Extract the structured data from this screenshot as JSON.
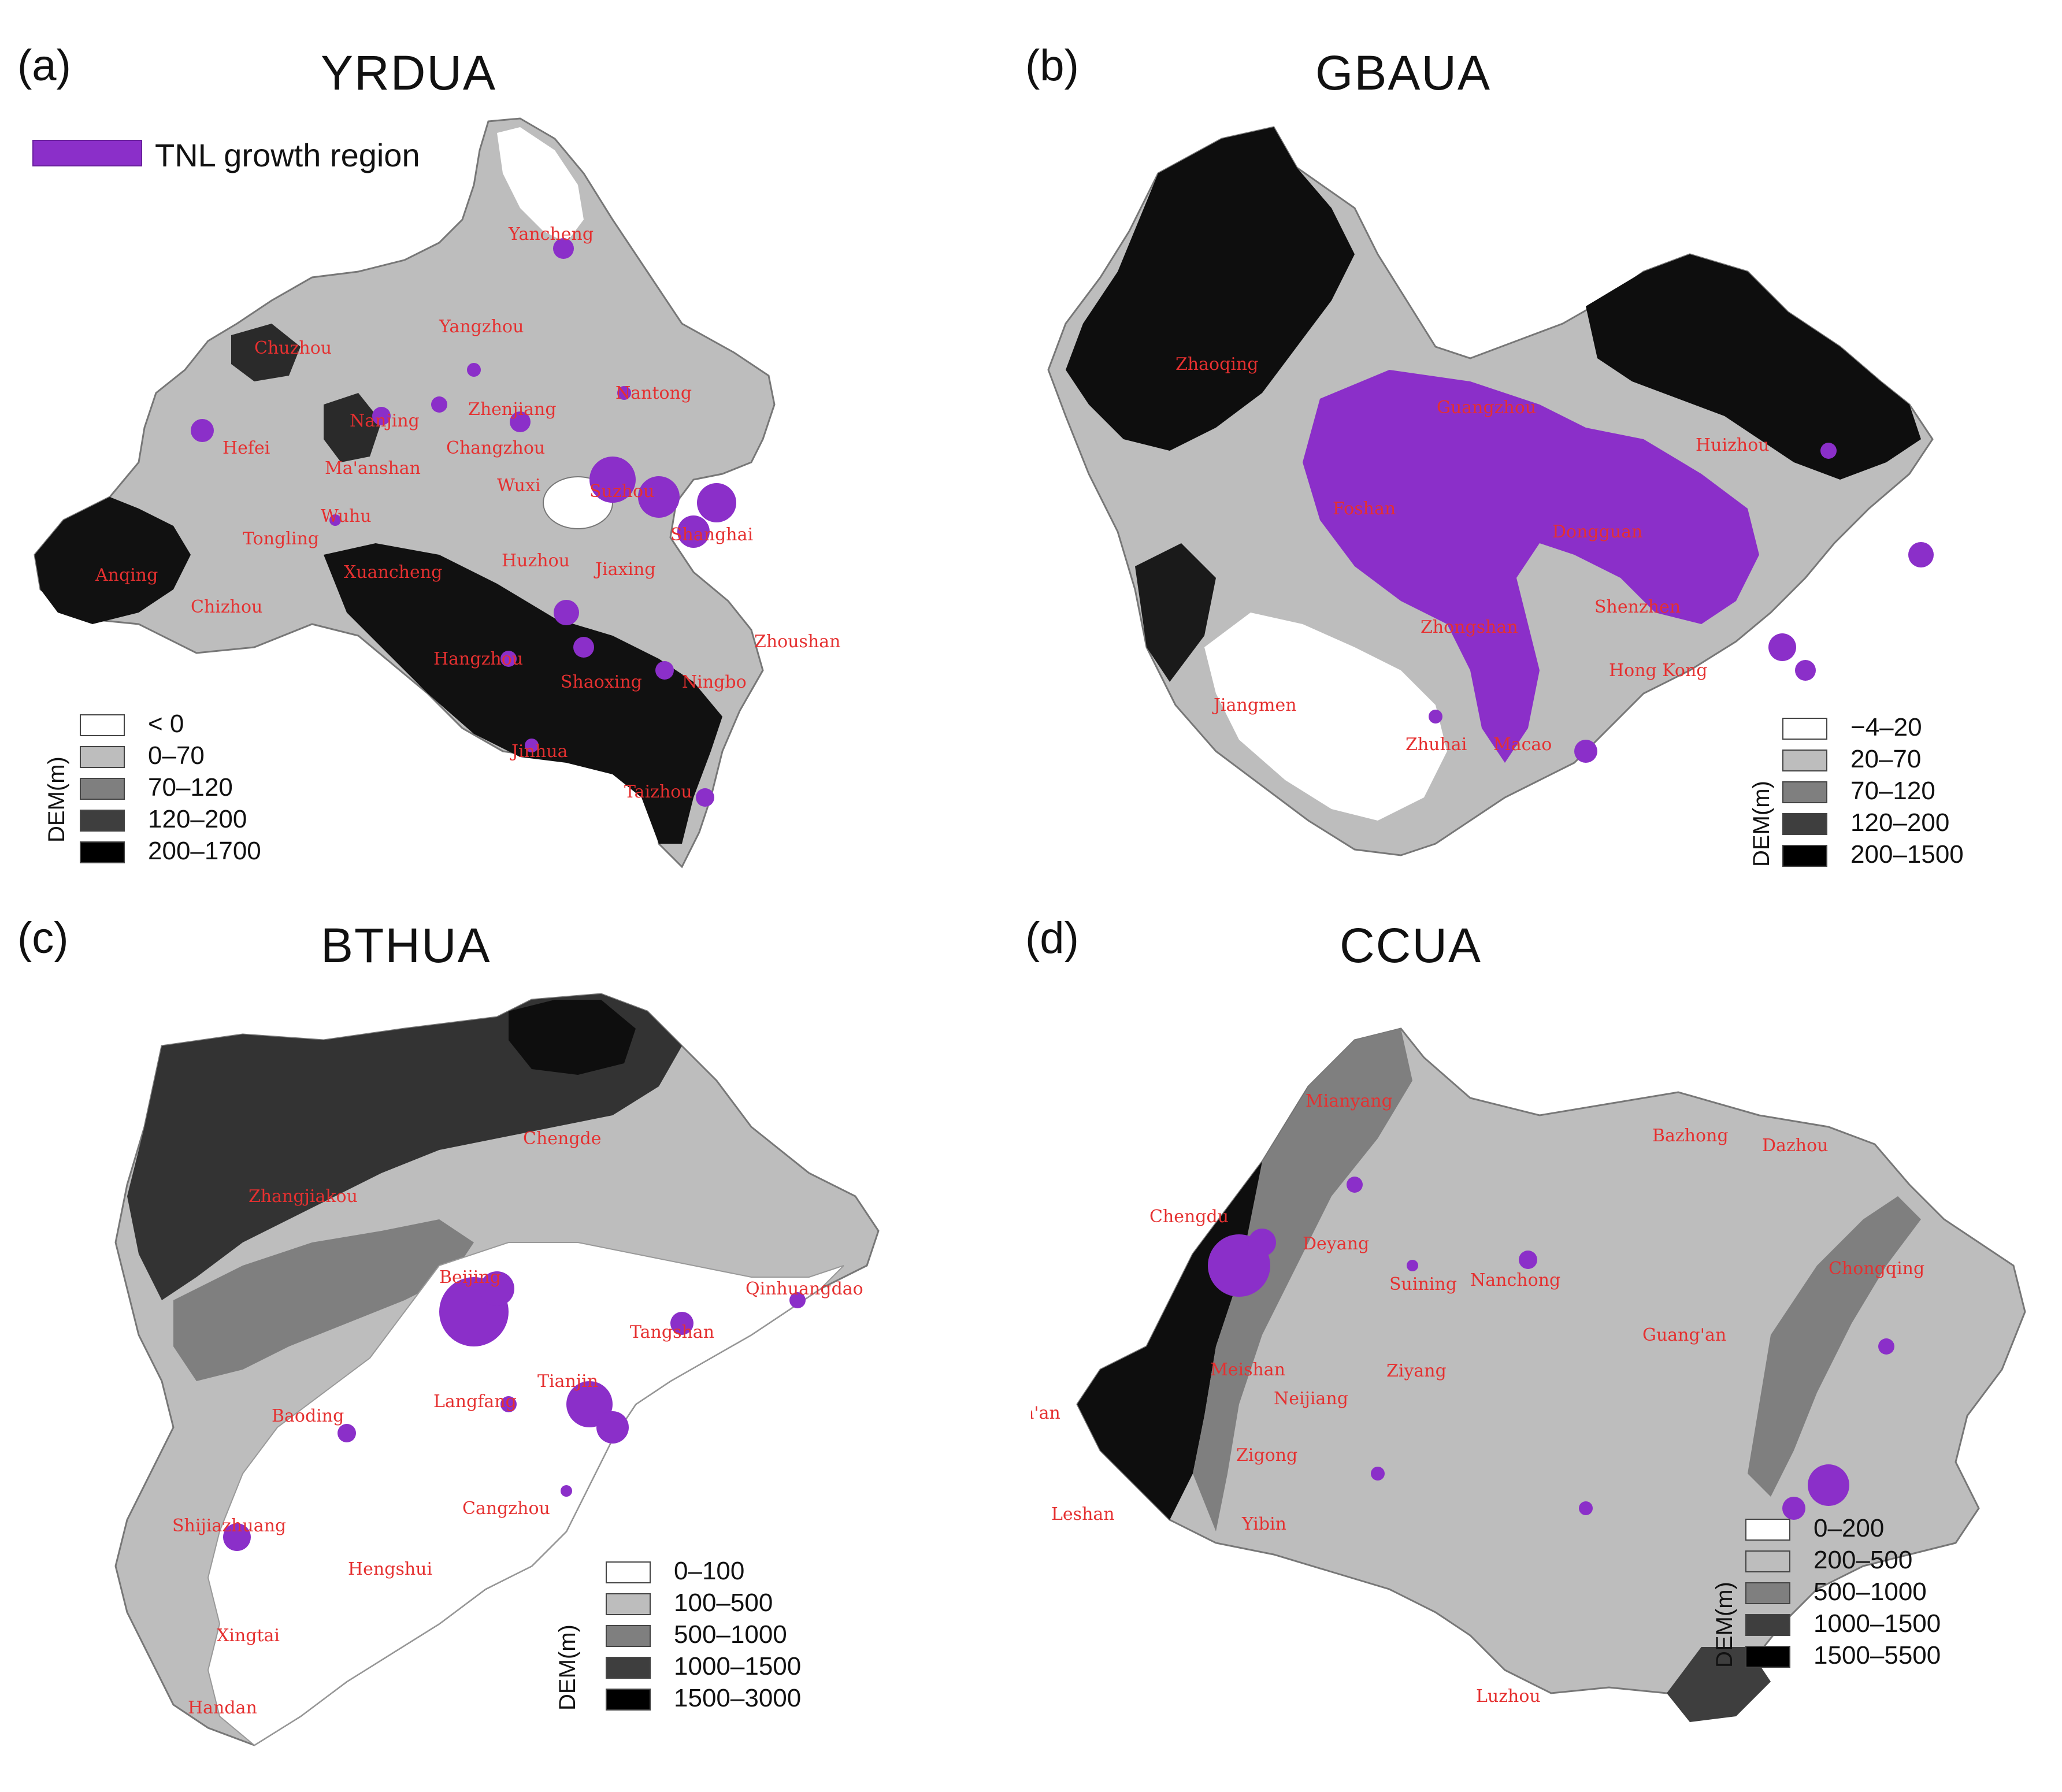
{
  "legend_tnl": {
    "label": "TNL growth region",
    "color": "#8b2fc9"
  },
  "panels": [
    {
      "letter": "(a)",
      "title": "YRDUA",
      "legend_axis": "DEM(m)",
      "legend": [
        {
          "label": "< 0",
          "color": "#ffffff"
        },
        {
          "label": "0–70",
          "color": "#bdbdbd"
        },
        {
          "label": "70–120",
          "color": "#7f7f7f"
        },
        {
          "label": "120–200",
          "color": "#3e3e3e"
        },
        {
          "label": "200–1700",
          "color": "#000000"
        }
      ],
      "cities": [
        "Yancheng",
        "Yangzhou",
        "Chuzhou",
        "Nantong",
        "Hefei",
        "Nanjing",
        "Zhenjiang",
        "Changzhou",
        "Ma'anshan",
        "Wuxi",
        "Suzhou",
        "Shanghai",
        "Wuhu",
        "Tongling",
        "Huzhou",
        "Jiaxing",
        "Anqing",
        "Xuancheng",
        "Chizhou",
        "Hangzhou",
        "Zhoushan",
        "Shaoxing",
        "Ningbo",
        "Jinhua",
        "Taizhou"
      ]
    },
    {
      "letter": "(b)",
      "title": "GBAUA",
      "legend_axis": "DEM(m)",
      "legend": [
        {
          "label": "−4–20",
          "color": "#ffffff"
        },
        {
          "label": "20–70",
          "color": "#bdbdbd"
        },
        {
          "label": "70–120",
          "color": "#7f7f7f"
        },
        {
          "label": "120–200",
          "color": "#3e3e3e"
        },
        {
          "label": "200–1500",
          "color": "#000000"
        }
      ],
      "cities": [
        "Zhaoqing",
        "Guangzhou",
        "Huizhou",
        "Foshan",
        "Dongguan",
        "Shenzhen",
        "Zhongshan",
        "Jiangmen",
        "Hong Kong",
        "Zhuhai",
        "Macao"
      ]
    },
    {
      "letter": "(c)",
      "title": "BTHUA",
      "legend_axis": "DEM(m)",
      "legend": [
        {
          "label": "0–100",
          "color": "#ffffff"
        },
        {
          "label": "100–500",
          "color": "#bdbdbd"
        },
        {
          "label": "500–1000",
          "color": "#7f7f7f"
        },
        {
          "label": "1000–1500",
          "color": "#3e3e3e"
        },
        {
          "label": "1500–3000",
          "color": "#000000"
        }
      ],
      "cities": [
        "Chengde",
        "Zhangjiakou",
        "Beijing",
        "Qinhuangdao",
        "Tangshan",
        "Tianjin",
        "Langfang",
        "Baoding",
        "Cangzhou",
        "Shijiazhuang",
        "Hengshui",
        "Xingtai",
        "Handan"
      ]
    },
    {
      "letter": "(d)",
      "title": "CCUA",
      "legend_axis": "DEM(m)",
      "legend": [
        {
          "label": "0–200",
          "color": "#ffffff"
        },
        {
          "label": "200–500",
          "color": "#bdbdbd"
        },
        {
          "label": "500–1000",
          "color": "#7f7f7f"
        },
        {
          "label": "1000–1500",
          "color": "#3e3e3e"
        },
        {
          "label": "1500–5500",
          "color": "#000000"
        }
      ],
      "cities": [
        "Mianyang",
        "Bazhong",
        "Dazhou",
        "Chengdu",
        "Deyang",
        "Suining",
        "Nanchong",
        "Chongqing",
        "Guang'an",
        "Meishan",
        "Ziyang",
        "Ya'an",
        "Neijiang",
        "Zigong",
        "Leshan",
        "Yibin",
        "Luzhou"
      ]
    }
  ]
}
